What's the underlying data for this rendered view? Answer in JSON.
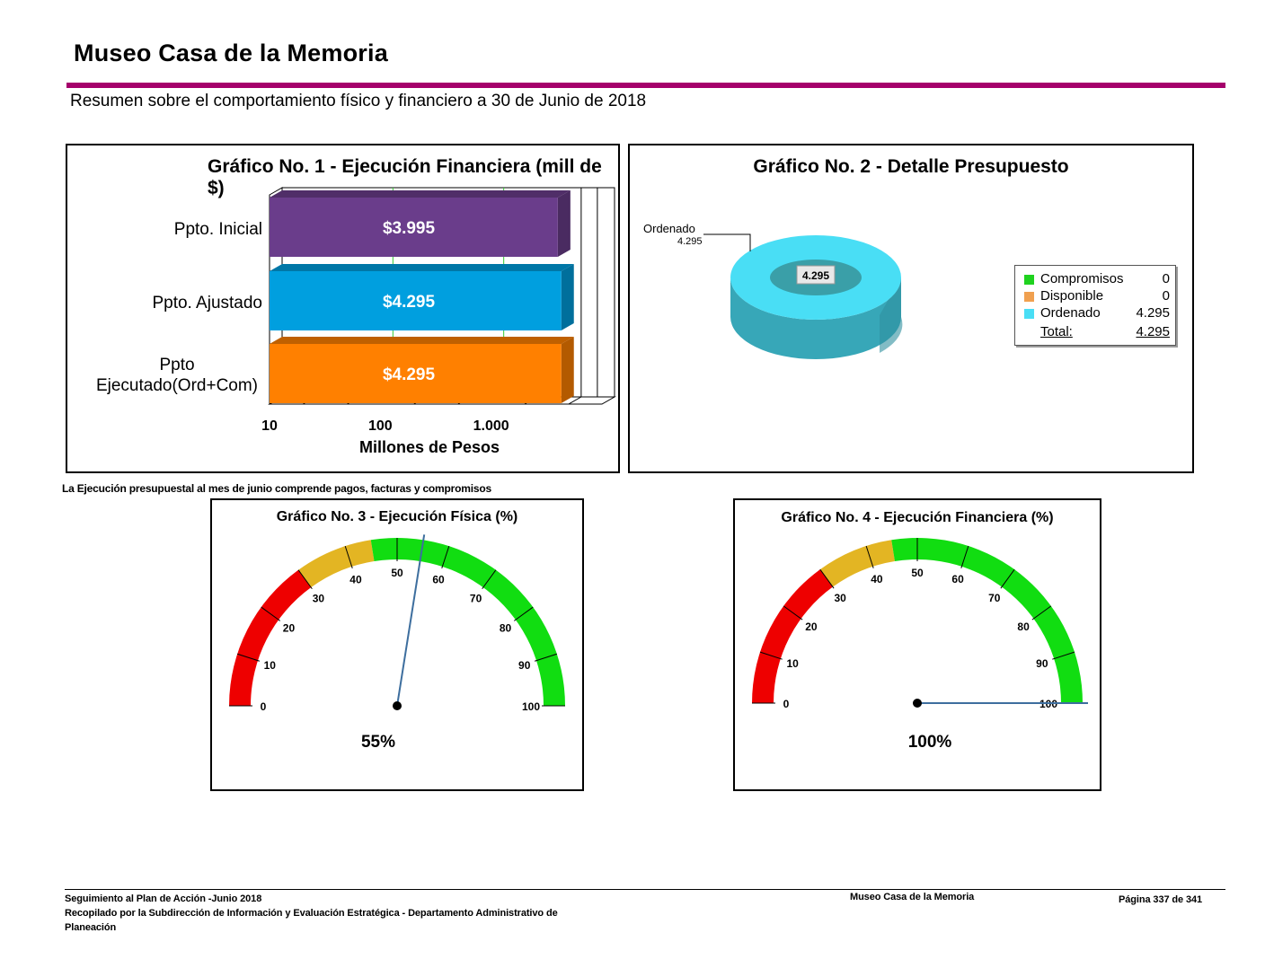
{
  "header": {
    "title": "Museo Casa de la Memoria",
    "subtitle": "Resumen sobre el comportamiento físico y financiero a 30 de Junio de 2018"
  },
  "colors": {
    "accent_rule": "#a5006b",
    "bar_inicial": "#6a3d8b",
    "bar_ajustado": "#009fdf",
    "bar_ejecutado": "#ff8000",
    "donut_ordenado": "#49def5",
    "legend_compromisos": "#1fd21f",
    "legend_disponible": "#f0a050",
    "gauge_red": "#ee0000",
    "gauge_yellow": "#e3b523",
    "gauge_green": "#11dd11",
    "needle": "#3d6e9e"
  },
  "chart_data": [
    {
      "type": "bar",
      "orientation": "horizontal",
      "title": "Gráfico No. 1 - Ejecución Financiera (mill de $)",
      "categories": [
        "Ppto. Inicial",
        "Ppto. Ajustado",
        "Ppto Ejecutado(Ord+Com)"
      ],
      "values": [
        3995,
        4295,
        4295
      ],
      "value_labels": [
        "$3.995",
        "$4.295",
        "$4.295"
      ],
      "xlabel": "Millones de Pesos",
      "ylabel": "",
      "x_scale": "log",
      "xlim": [
        10,
        10000
      ],
      "x_tick_labels": [
        "10",
        "100",
        "1.000"
      ]
    },
    {
      "type": "pie",
      "style": "donut-3d",
      "title": "Gráfico No. 2 - Detalle Presupuesto",
      "slices": [
        {
          "label": "Compromisos",
          "value": 0,
          "value_label": "0"
        },
        {
          "label": "Disponible",
          "value": 0,
          "value_label": "0"
        },
        {
          "label": "Ordenado",
          "value": 4295,
          "value_label": "4.295"
        }
      ],
      "total_label": "Total:",
      "total_value": "4.295",
      "callout_label": "Ordenado",
      "callout_value": "4.295",
      "center_label": "4.295",
      "legend_position": "right"
    },
    {
      "type": "gauge",
      "title": "Gráfico No. 3 -  Ejecución Física (%)",
      "value": 55,
      "value_label": "55%",
      "range": [
        0,
        100
      ],
      "tick_labels": [
        "0",
        "10",
        "20",
        "30",
        "40",
        "50",
        "60",
        "70",
        "80",
        "90",
        "100"
      ],
      "bands": [
        {
          "from": 0,
          "to": 30,
          "color": "red"
        },
        {
          "from": 30,
          "to": 45,
          "color": "yellow"
        },
        {
          "from": 45,
          "to": 100,
          "color": "green"
        }
      ]
    },
    {
      "type": "gauge",
      "title": "Gráfico No. 4 -  Ejecución Financiera (%)",
      "value": 100,
      "value_label": "100%",
      "range": [
        0,
        100
      ],
      "tick_labels": [
        "0",
        "10",
        "20",
        "30",
        "40",
        "50",
        "60",
        "70",
        "80",
        "90",
        "100"
      ],
      "bands": [
        {
          "from": 0,
          "to": 30,
          "color": "red"
        },
        {
          "from": 30,
          "to": 45,
          "color": "yellow"
        },
        {
          "from": 45,
          "to": 100,
          "color": "green"
        }
      ]
    }
  ],
  "note": "La Ejecución presupuestal al mes de junio comprende pagos, facturas y compromisos",
  "footer": {
    "line1": "Seguimiento al Plan de Acción -Junio 2018",
    "line2": "Recopilado por la Subdirección de Información y Evaluación Estratégica - Departamento Administrativo de",
    "line3": "Planeación",
    "center": "Museo Casa de la Memoria",
    "page": "Página 337 de 341"
  }
}
